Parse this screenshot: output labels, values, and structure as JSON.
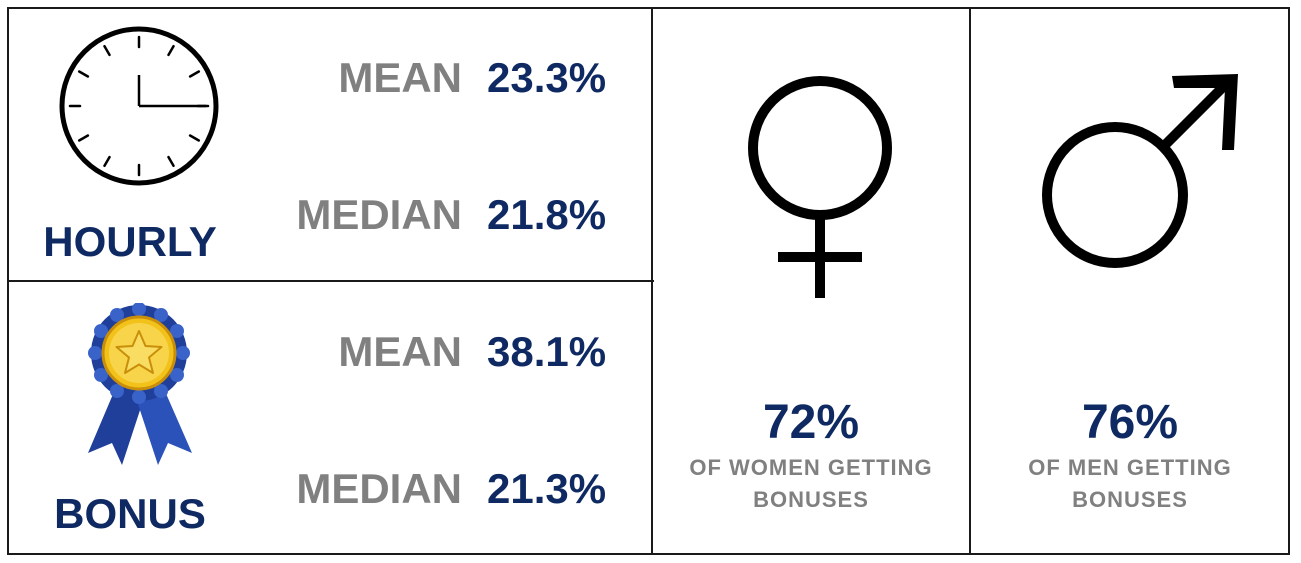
{
  "hourly": {
    "title": "HOURLY",
    "icon": "clock-icon",
    "mean_label": "MEAN",
    "mean_value": "23.3%",
    "median_label": "MEDIAN",
    "median_value": "21.8%"
  },
  "bonus": {
    "title": "BONUS",
    "icon": "award-ribbon-icon",
    "mean_label": "MEAN",
    "mean_value": "38.1%",
    "median_label": "MEDIAN",
    "median_value": "21.3%"
  },
  "women": {
    "icon": "female-symbol-icon",
    "percent": "72%",
    "caption_line1": "OF WOMEN GETTING",
    "caption_line2": "BONUSES"
  },
  "men": {
    "icon": "male-symbol-icon",
    "percent": "76%",
    "caption_line1": "OF MEN GETTING",
    "caption_line2": "BONUSES"
  },
  "colors": {
    "navy": "#0f2a63",
    "gray": "#808080",
    "border": "#1a1a1a",
    "medal_gold": "#f2c21b",
    "ribbon_blue": "#1f3f9a"
  }
}
